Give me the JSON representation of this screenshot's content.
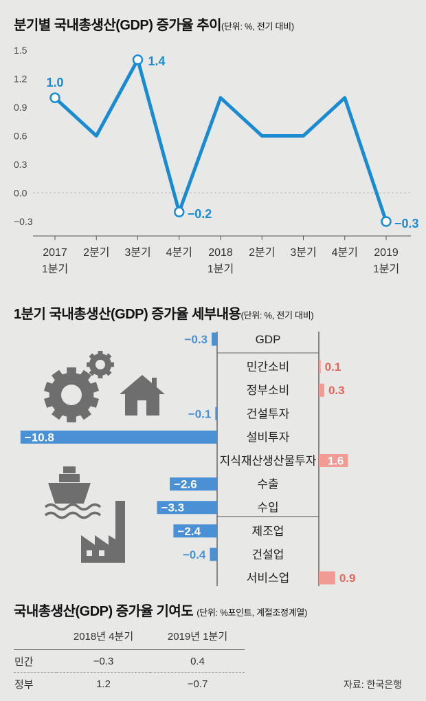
{
  "source": "자료: 한국은행",
  "chart_data": [
    {
      "type": "line",
      "title": "분기별 국내총생산(GDP) 증가율 추이",
      "unit": "(단위: %, 전기 대비)",
      "x": [
        "2017 1분기",
        "2분기",
        "3분기",
        "4분기",
        "2018 1분기",
        "2분기",
        "3분기",
        "4분기",
        "2019 1분기"
      ],
      "x_ticks": [
        [
          "2017",
          "1분기"
        ],
        [
          "2분기"
        ],
        [
          "3분기"
        ],
        [
          "4분기"
        ],
        [
          "2018",
          "1분기"
        ],
        [
          "2분기"
        ],
        [
          "3분기"
        ],
        [
          "4분기"
        ],
        [
          "2019",
          "1분기"
        ]
      ],
      "series": [
        {
          "values": [
            1.0,
            0.6,
            1.4,
            -0.2,
            1.0,
            0.6,
            0.6,
            1.0,
            -0.3
          ]
        }
      ],
      "labels": [
        {
          "index": 0,
          "text": "1.0"
        },
        {
          "index": 2,
          "text": "1.4"
        },
        {
          "index": 3,
          "text": "−0.2"
        },
        {
          "index": 8,
          "text": "−0.3"
        }
      ],
      "y_ticks": [
        "1.5",
        "1.2",
        "0.9",
        "0.6",
        "0.3",
        "0.0",
        "−0.3"
      ],
      "ylim": [
        -0.45,
        1.5
      ],
      "color": "#1a8bd1"
    },
    {
      "type": "bar",
      "title": "1분기 국내총생산(GDP) 증가율 세부내용",
      "unit": "(단위: %, 전기 대비)",
      "categories": [
        "GDP",
        "민간소비",
        "정부소비",
        "건설투자",
        "설비투자",
        "지식재산생산물투자",
        "수출",
        "수입",
        "제조업",
        "건설업",
        "서비스업"
      ],
      "values": [
        -0.3,
        0.1,
        0.3,
        -0.1,
        -10.8,
        1.6,
        -2.6,
        -3.3,
        -2.4,
        -0.4,
        0.9
      ],
      "value_labels": [
        "−0.3",
        "0.1",
        "0.3",
        "−0.1",
        "−10.8",
        "1.6",
        "−2.6",
        "−3.3",
        "−2.4",
        "−0.4",
        "0.9"
      ],
      "negative_color": "#4a90d4",
      "positive_color": "#f29a94"
    },
    {
      "type": "table",
      "title": "국내총생산(GDP) 증가율 기여도",
      "unit": "(단위: %포인트, 계절조정계열)",
      "columns": [
        "",
        "2018년 4분기",
        "2019년 1분기"
      ],
      "rows": [
        [
          "민간",
          "−0.3",
          "0.4"
        ],
        [
          "정부",
          "1.2",
          "−0.7"
        ]
      ]
    }
  ]
}
